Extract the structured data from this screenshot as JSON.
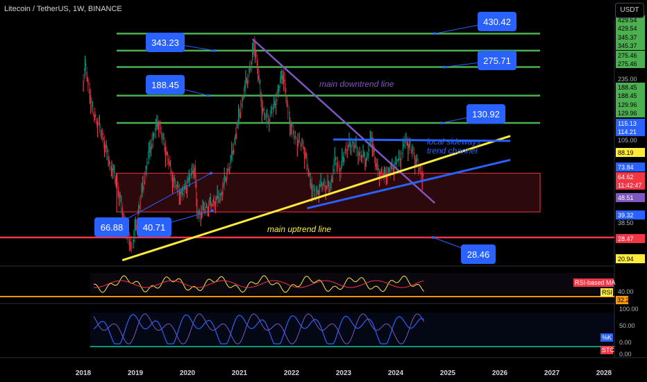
{
  "header": {
    "title": "Litecoin / TetherUS, 1W, BINANCE",
    "currency": "USDT"
  },
  "colors": {
    "background": "#000000",
    "resistance": "#4caf50",
    "support": "#f23645",
    "downtrend": "#7e57c2",
    "uptrend": "#ffeb3b",
    "channel": "#2962ff",
    "callout": "#2962ff",
    "zone": "#f23645"
  },
  "chart_data": [
    {
      "type": "candlestick",
      "title": "Litecoin / TetherUS, 1W, BINANCE",
      "x_ticks": [
        "2018",
        "2019",
        "2020",
        "2021",
        "2022",
        "2023",
        "2024",
        "2025",
        "2026",
        "2027",
        "2028"
      ],
      "price_scale_labels": [
        "429.54",
        "429.54",
        "345.37",
        "345.37",
        "275.46",
        "275.46",
        "235.00",
        "188.45",
        "188.45",
        "129.96",
        "129.96",
        "115.13",
        "114.21",
        "105.00",
        "88.19",
        "73.84",
        "64.62",
        "11:42:47",
        "48.51",
        "39.32",
        "38.50",
        "28.47",
        "20.94"
      ],
      "levels": [
        {
          "value": 430.42,
          "label": "430.42",
          "color": "resistance"
        },
        {
          "value": 343.23,
          "label": "343.23",
          "color": "resistance"
        },
        {
          "value": 275.71,
          "label": "275.71",
          "color": "resistance"
        },
        {
          "value": 188.45,
          "label": "188.45",
          "color": "resistance"
        },
        {
          "value": 130.92,
          "label": "130.92",
          "color": "resistance"
        },
        {
          "value": 28.46,
          "label": "28.46",
          "color": "support"
        }
      ],
      "callouts_extra": [
        {
          "value": 66.88,
          "label": "66.88"
        },
        {
          "value": 40.71,
          "label": "40.71"
        }
      ],
      "annotations": [
        {
          "text": "main downtrend line",
          "color": "downtrend"
        },
        {
          "text": "local sideways",
          "color": "channel"
        },
        {
          "text": "trend channel",
          "color": "channel"
        },
        {
          "text": "main uptrend line",
          "color": "uptrend"
        }
      ],
      "current_price": "64.62",
      "countdown": "11:42:47",
      "price_points": [
        [
          2018.0,
          230
        ],
        [
          2018.05,
          280
        ],
        [
          2018.2,
          150
        ],
        [
          2018.35,
          120
        ],
        [
          2018.5,
          80
        ],
        [
          2018.65,
          60
        ],
        [
          2018.85,
          30
        ],
        [
          2018.95,
          25
        ],
        [
          2019.1,
          45
        ],
        [
          2019.3,
          95
        ],
        [
          2019.45,
          135
        ],
        [
          2019.6,
          90
        ],
        [
          2019.75,
          60
        ],
        [
          2019.9,
          50
        ],
        [
          2020.05,
          62
        ],
        [
          2020.15,
          75
        ],
        [
          2020.2,
          38
        ],
        [
          2020.35,
          42
        ],
        [
          2020.5,
          45
        ],
        [
          2020.65,
          50
        ],
        [
          2020.85,
          80
        ],
        [
          2021.0,
          140
        ],
        [
          2021.1,
          200
        ],
        [
          2021.25,
          300
        ],
        [
          2021.3,
          380
        ],
        [
          2021.45,
          160
        ],
        [
          2021.55,
          135
        ],
        [
          2021.7,
          170
        ],
        [
          2021.85,
          260
        ],
        [
          2021.95,
          150
        ],
        [
          2022.05,
          110
        ],
        [
          2022.25,
          95
        ],
        [
          2022.35,
          65
        ],
        [
          2022.45,
          50
        ],
        [
          2022.6,
          58
        ],
        [
          2022.75,
          55
        ],
        [
          2022.85,
          80
        ],
        [
          2022.95,
          70
        ],
        [
          2023.05,
          92
        ],
        [
          2023.2,
          100
        ],
        [
          2023.3,
          88
        ],
        [
          2023.45,
          80
        ],
        [
          2023.55,
          108
        ],
        [
          2023.65,
          70
        ],
        [
          2023.8,
          65
        ],
        [
          2023.95,
          72
        ],
        [
          2024.1,
          82
        ],
        [
          2024.2,
          105
        ],
        [
          2024.35,
          88
        ],
        [
          2024.45,
          72
        ],
        [
          2024.55,
          64.62
        ]
      ]
    },
    {
      "type": "line",
      "title": "RSI",
      "series": [
        {
          "name": "RSI"
        },
        {
          "name": "RSI-based MA"
        }
      ],
      "price_scale_labels": [
        "RSI-based MA",
        "40.00",
        "RSI",
        "32.22"
      ]
    },
    {
      "type": "line",
      "title": "STC",
      "series": [
        {
          "name": "%K"
        },
        {
          "name": "STC"
        }
      ],
      "price_scale_labels": [
        "100.00",
        "50.00",
        "%K",
        "0.00",
        "STC",
        "0.00"
      ]
    }
  ]
}
